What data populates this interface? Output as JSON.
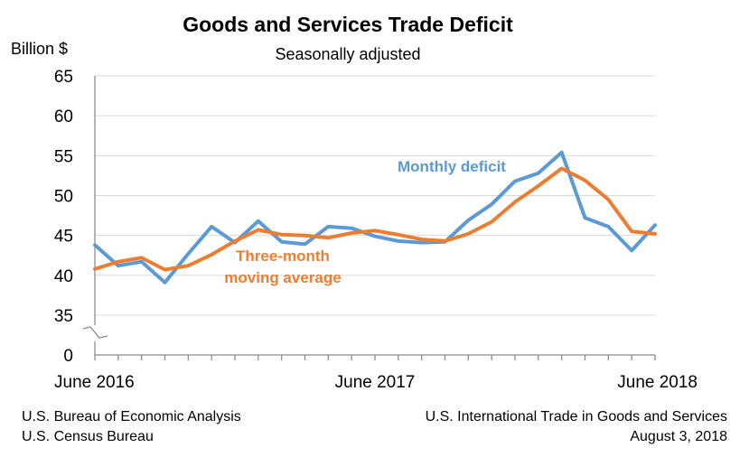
{
  "chart_data": {
    "type": "line",
    "title": "Goods and Services Trade Deficit",
    "subtitle": "Seasonally adjusted",
    "ylabel": "Billion $",
    "xlabel": "",
    "ylim": [
      30,
      65
    ],
    "axis_break": true,
    "y_ticks": [
      0,
      35,
      40,
      45,
      50,
      55,
      60,
      65
    ],
    "x_tick_labels": [
      "June 2016",
      "June 2017",
      "June 2018"
    ],
    "x": [
      "2016-06",
      "2016-07",
      "2016-08",
      "2016-09",
      "2016-10",
      "2016-11",
      "2016-12",
      "2017-01",
      "2017-02",
      "2017-03",
      "2017-04",
      "2017-05",
      "2017-06",
      "2017-07",
      "2017-08",
      "2017-09",
      "2017-10",
      "2017-11",
      "2017-12",
      "2018-01",
      "2018-02",
      "2018-03",
      "2018-04",
      "2018-05",
      "2018-06"
    ],
    "grid": true,
    "series": [
      {
        "name": "Monthly deficit",
        "color": "#5B9BD5",
        "values": [
          43.8,
          41.2,
          41.7,
          39.1,
          42.7,
          46.1,
          44.1,
          46.8,
          44.2,
          43.9,
          46.1,
          45.9,
          44.9,
          44.3,
          44.1,
          44.2,
          46.9,
          48.9,
          51.8,
          52.8,
          55.4,
          47.2,
          46.1,
          43.1,
          46.3
        ]
      },
      {
        "name": "Three-month moving average",
        "color": "#ED7D31",
        "values": [
          40.8,
          41.7,
          42.2,
          40.7,
          41.2,
          42.6,
          44.3,
          45.7,
          45.1,
          45.0,
          44.7,
          45.3,
          45.6,
          45.1,
          44.5,
          44.3,
          45.2,
          46.7,
          49.2,
          51.2,
          53.4,
          51.9,
          49.5,
          45.5,
          45.2
        ]
      }
    ],
    "series_labels": {
      "monthly": "Monthly deficit",
      "moving_line1": "Three-month",
      "moving_line2": "moving average"
    }
  },
  "footer": {
    "left_line1": "U.S. Bureau of Economic Analysis",
    "left_line2": "U.S. Census Bureau",
    "right_line1": "U.S. International Trade in Goods and Services",
    "right_line2": "August 3, 2018"
  }
}
